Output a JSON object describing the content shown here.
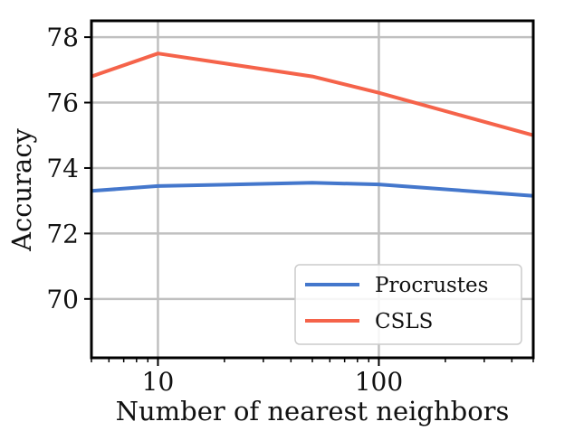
{
  "chart_data": {
    "type": "line",
    "title": "",
    "xlabel": "Number of nearest neighbors",
    "ylabel": "Accuracy",
    "xscale": "log",
    "xlim": [
      5,
      500
    ],
    "ylim": [
      68.2,
      78.5
    ],
    "xticks": [
      10,
      100
    ],
    "xtick_labels": [
      "10",
      "100"
    ],
    "yticks": [
      70,
      72,
      74,
      76,
      78
    ],
    "ytick_labels": [
      "70",
      "72",
      "74",
      "76",
      "78"
    ],
    "grid": true,
    "legend_position": "bottom-right",
    "series": [
      {
        "name": "Procrustes",
        "color": "#4477cc",
        "x": [
          5,
          10,
          50,
          100,
          500
        ],
        "y": [
          73.3,
          73.45,
          73.55,
          73.5,
          73.15
        ]
      },
      {
        "name": "CSLS",
        "color": "#f5634a",
        "x": [
          5,
          10,
          50,
          100,
          500
        ],
        "y": [
          76.8,
          77.5,
          76.8,
          76.3,
          75.0
        ]
      }
    ]
  }
}
